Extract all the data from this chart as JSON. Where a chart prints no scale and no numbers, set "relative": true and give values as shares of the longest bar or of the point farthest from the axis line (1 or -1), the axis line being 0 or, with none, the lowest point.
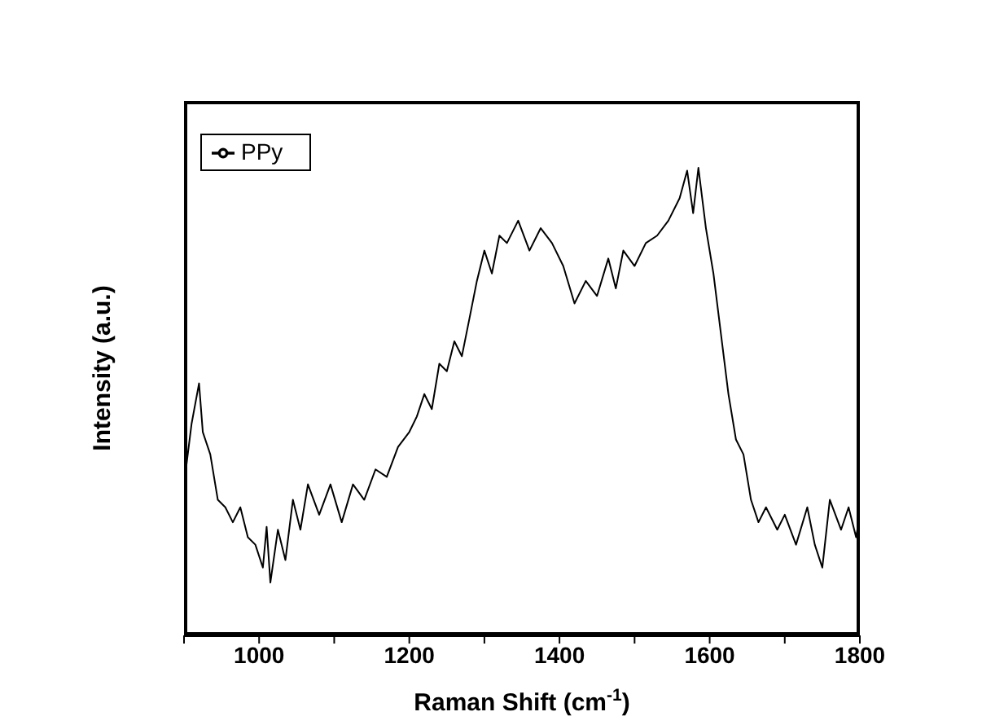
{
  "chart_data": {
    "type": "line",
    "relative": true,
    "xlabel": "Raman Shift (cm$^{-1}$)",
    "ylabel": "Intensity (a.u.)",
    "legend": "top left",
    "marker": "none",
    "line_style": "solid",
    "grid": false,
    "xlim": [
      900,
      1800
    ],
    "xticks": [
      {
        "value": 900,
        "label": null
      },
      1000,
      {
        "value": 1100,
        "label": null
      },
      1200,
      {
        "value": 1300,
        "label": null
      },
      1400,
      {
        "value": 1500,
        "label": null
      },
      1600,
      {
        "value": 1700,
        "label": null
      },
      1800
    ],
    "x": [
      900,
      910,
      920,
      925,
      935,
      945,
      955,
      965,
      975,
      985,
      995,
      1005,
      1010,
      1015,
      1025,
      1035,
      1045,
      1055,
      1065,
      1080,
      1095,
      1110,
      1125,
      1140,
      1155,
      1170,
      1185,
      1200,
      1210,
      1220,
      1230,
      1240,
      1250,
      1260,
      1270,
      1280,
      1290,
      1300,
      1310,
      1320,
      1330,
      1345,
      1360,
      1375,
      1390,
      1405,
      1420,
      1435,
      1450,
      1465,
      1475,
      1485,
      1500,
      1515,
      1530,
      1545,
      1560,
      1570,
      1578,
      1585,
      1595,
      1605,
      1615,
      1625,
      1635,
      1645,
      1655,
      1665,
      1675,
      1690,
      1700,
      1715,
      1730,
      1740,
      1750,
      1760,
      1775,
      1785,
      1795,
      1800
    ],
    "series": [
      {
        "name": "PPy",
        "color": "#000000",
        "values": [
          0.323,
          0.452,
          0.539,
          0.435,
          0.387,
          0.29,
          0.274,
          0.242,
          0.274,
          0.21,
          0.194,
          0.145,
          0.232,
          0.113,
          0.226,
          0.161,
          0.29,
          0.226,
          0.323,
          0.258,
          0.323,
          0.242,
          0.323,
          0.29,
          0.355,
          0.339,
          0.403,
          0.435,
          0.468,
          0.516,
          0.484,
          0.581,
          0.565,
          0.629,
          0.597,
          0.677,
          0.758,
          0.823,
          0.774,
          0.855,
          0.839,
          0.887,
          0.823,
          0.871,
          0.839,
          0.79,
          0.71,
          0.758,
          0.726,
          0.806,
          0.742,
          0.823,
          0.79,
          0.839,
          0.855,
          0.887,
          0.935,
          0.994,
          0.903,
          1,
          0.871,
          0.774,
          0.645,
          0.516,
          0.419,
          0.387,
          0.29,
          0.242,
          0.274,
          0.226,
          0.258,
          0.194,
          0.274,
          0.194,
          0.145,
          0.29,
          0.226,
          0.274,
          0.21,
          0.258
        ]
      }
    ]
  }
}
